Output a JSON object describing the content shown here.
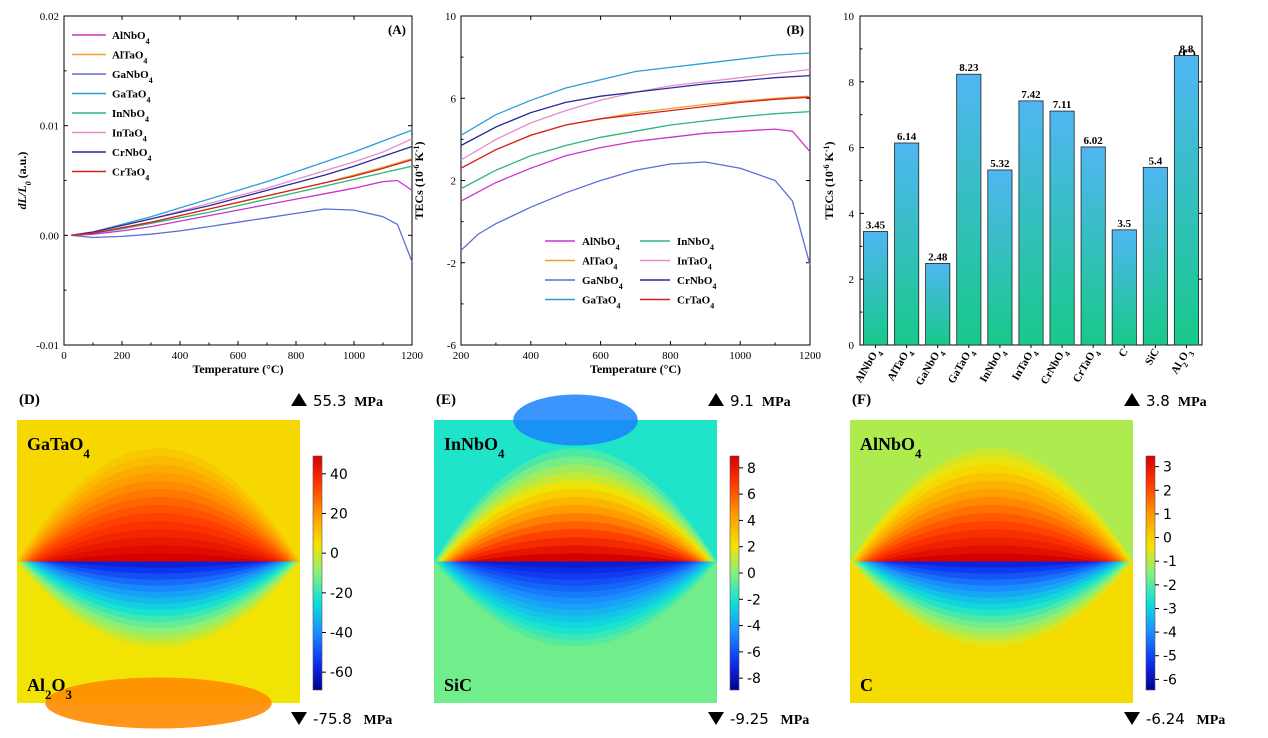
{
  "chart_data": [
    {
      "type": "line",
      "panel_label": "(A)",
      "xlabel": "Temperature (°C)",
      "ylabel": "dL/L0 (a.u.)",
      "ylabel_parts": {
        "main": "dL/L",
        "sub": "0",
        "unit": " (a.u.)"
      },
      "xlim": [
        0,
        1200
      ],
      "ylim": [
        -0.01,
        0.02
      ],
      "xticks": [
        0,
        200,
        400,
        600,
        800,
        1000,
        1200
      ],
      "yticks": [
        -0.01,
        0.0,
        0.01,
        0.02
      ],
      "ytick_labels": [
        "-0.01",
        "0.00",
        "0.01",
        "0.02"
      ],
      "legend_position": "top-left",
      "series": [
        {
          "name": "AlNbO4",
          "label_main": "AlNbO",
          "label_sub": "4",
          "color": "#cc33cc",
          "x": [
            25,
            100,
            200,
            300,
            400,
            500,
            600,
            700,
            800,
            900,
            1000,
            1100,
            1150,
            1200
          ],
          "y": [
            0.0,
            0.0001,
            0.0004,
            0.0008,
            0.0013,
            0.0018,
            0.0023,
            0.0028,
            0.0033,
            0.0038,
            0.0043,
            0.0049,
            0.005,
            0.0041
          ]
        },
        {
          "name": "AlTaO4",
          "label_main": "AlTaO",
          "label_sub": "4",
          "color": "#e8a32c",
          "x": [
            25,
            100,
            200,
            300,
            400,
            500,
            600,
            700,
            800,
            900,
            1000,
            1100,
            1200
          ],
          "y": [
            0.0,
            0.0002,
            0.0007,
            0.0012,
            0.0018,
            0.0024,
            0.003,
            0.0036,
            0.0042,
            0.0048,
            0.0055,
            0.0062,
            0.007
          ]
        },
        {
          "name": "GaNbO4",
          "label_main": "GaNbO",
          "label_sub": "4",
          "color": "#5b6fd6",
          "x": [
            25,
            100,
            200,
            300,
            400,
            500,
            600,
            700,
            800,
            900,
            1000,
            1100,
            1150,
            1200
          ],
          "y": [
            0.0,
            -0.0002,
            -0.0001,
            0.0001,
            0.0004,
            0.0008,
            0.0012,
            0.0016,
            0.002,
            0.0024,
            0.0023,
            0.0017,
            0.001,
            -0.0024
          ]
        },
        {
          "name": "GaTaO4",
          "label_main": "GaTaO",
          "label_sub": "4",
          "color": "#2b9fd6",
          "x": [
            25,
            100,
            200,
            300,
            400,
            500,
            600,
            700,
            800,
            900,
            1000,
            1100,
            1200
          ],
          "y": [
            0.0,
            0.0003,
            0.001,
            0.0017,
            0.0025,
            0.0033,
            0.0041,
            0.0049,
            0.0058,
            0.0067,
            0.0076,
            0.0086,
            0.0096
          ]
        },
        {
          "name": "InNbO4",
          "label_main": "InNbO",
          "label_sub": "4",
          "color": "#2cb57a",
          "x": [
            25,
            100,
            200,
            300,
            400,
            500,
            600,
            700,
            800,
            900,
            1000,
            1100,
            1200
          ],
          "y": [
            0.0,
            0.0002,
            0.0006,
            0.0011,
            0.0016,
            0.0021,
            0.0027,
            0.0033,
            0.0039,
            0.0045,
            0.0051,
            0.0057,
            0.0063
          ]
        },
        {
          "name": "InTaO4",
          "label_main": "InTaO",
          "label_sub": "4",
          "color": "#e48ec9",
          "x": [
            25,
            100,
            200,
            300,
            400,
            500,
            600,
            700,
            800,
            900,
            1000,
            1100,
            1200
          ],
          "y": [
            0.0,
            0.0003,
            0.0009,
            0.0015,
            0.0022,
            0.0029,
            0.0036,
            0.0043,
            0.0051,
            0.0059,
            0.0067,
            0.0076,
            0.0088
          ]
        },
        {
          "name": "CrNbO4",
          "label_main": "CrNbO",
          "label_sub": "4",
          "color": "#2a2a9a",
          "x": [
            25,
            100,
            200,
            300,
            400,
            500,
            600,
            700,
            800,
            900,
            1000,
            1100,
            1200
          ],
          "y": [
            0.0,
            0.0003,
            0.0009,
            0.0015,
            0.0021,
            0.0027,
            0.0034,
            0.0041,
            0.0048,
            0.0055,
            0.0063,
            0.0072,
            0.0081
          ]
        },
        {
          "name": "CrTaO4",
          "label_main": "CrTaO",
          "label_sub": "4",
          "color": "#d62020",
          "x": [
            25,
            100,
            200,
            300,
            400,
            500,
            600,
            700,
            800,
            900,
            1000,
            1100,
            1200
          ],
          "y": [
            0.0,
            0.0002,
            0.0007,
            0.0012,
            0.0018,
            0.0024,
            0.003,
            0.0036,
            0.0042,
            0.0048,
            0.0054,
            0.0061,
            0.0069
          ]
        }
      ]
    },
    {
      "type": "line",
      "panel_label": "(B)",
      "xlabel": "Temperature (°C)",
      "ylabel": "TECs (10-6 K-1)",
      "ylabel_parts": {
        "main": "TECs (10",
        "sup1": "-6",
        "mid": " K",
        "sup2": "-1",
        "end": ")"
      },
      "xlim": [
        200,
        1200
      ],
      "ylim": [
        -6,
        10
      ],
      "xticks": [
        200,
        400,
        600,
        800,
        1000,
        1200
      ],
      "yticks": [
        -6,
        -2,
        2,
        6,
        10
      ],
      "legend_position": "bottom-center",
      "series": [
        {
          "name": "AlNbO4",
          "label_main": "AlNbO",
          "label_sub": "4",
          "color": "#cc33cc",
          "x": [
            200,
            300,
            400,
            500,
            600,
            700,
            800,
            900,
            1000,
            1100,
            1150,
            1200
          ],
          "y": [
            1.0,
            1.9,
            2.6,
            3.2,
            3.6,
            3.9,
            4.1,
            4.3,
            4.4,
            4.5,
            4.4,
            3.4
          ]
        },
        {
          "name": "AlTaO4",
          "label_main": "AlTaO",
          "label_sub": "4",
          "color": "#e8a32c",
          "x": [
            200,
            300,
            400,
            500,
            600,
            700,
            800,
            900,
            1000,
            1100,
            1200
          ],
          "y": [
            2.6,
            3.5,
            4.2,
            4.7,
            5.0,
            5.3,
            5.5,
            5.7,
            5.85,
            6.0,
            6.1
          ]
        },
        {
          "name": "GaNbO4",
          "label_main": "GaNbO",
          "label_sub": "4",
          "color": "#5b6fd6",
          "x": [
            200,
            250,
            300,
            400,
            500,
            600,
            700,
            800,
            900,
            1000,
            1100,
            1150,
            1200
          ],
          "y": [
            -1.4,
            -0.6,
            -0.1,
            0.7,
            1.4,
            2.0,
            2.5,
            2.8,
            2.9,
            2.6,
            2.0,
            1.0,
            -2.1
          ]
        },
        {
          "name": "GaTaO4",
          "label_main": "GaTaO",
          "label_sub": "4",
          "color": "#2b9fd6",
          "x": [
            200,
            300,
            400,
            500,
            600,
            700,
            800,
            900,
            1000,
            1100,
            1200
          ],
          "y": [
            4.2,
            5.2,
            5.9,
            6.5,
            6.9,
            7.3,
            7.5,
            7.7,
            7.9,
            8.1,
            8.2
          ]
        },
        {
          "name": "InNbO4",
          "label_main": "InNbO",
          "label_sub": "4",
          "color": "#2cb57a",
          "x": [
            200,
            300,
            400,
            500,
            600,
            700,
            800,
            900,
            1000,
            1100,
            1200
          ],
          "y": [
            1.6,
            2.5,
            3.2,
            3.7,
            4.1,
            4.4,
            4.7,
            4.9,
            5.1,
            5.25,
            5.35
          ]
        },
        {
          "name": "InTaO4",
          "label_main": "InTaO",
          "label_sub": "4",
          "color": "#e48ec9",
          "x": [
            200,
            300,
            400,
            500,
            600,
            700,
            800,
            900,
            1000,
            1100,
            1200
          ],
          "y": [
            3.0,
            4.0,
            4.8,
            5.4,
            5.9,
            6.3,
            6.6,
            6.8,
            7.0,
            7.2,
            7.4
          ]
        },
        {
          "name": "CrNbO4",
          "label_main": "CrNbO",
          "label_sub": "4",
          "color": "#2a2a9a",
          "x": [
            200,
            300,
            400,
            500,
            600,
            700,
            800,
            900,
            1000,
            1100,
            1200
          ],
          "y": [
            3.7,
            4.6,
            5.3,
            5.8,
            6.1,
            6.3,
            6.5,
            6.7,
            6.85,
            7.0,
            7.1
          ]
        },
        {
          "name": "CrTaO4",
          "label_main": "CrTaO",
          "label_sub": "4",
          "color": "#d62020",
          "x": [
            200,
            300,
            400,
            500,
            600,
            700,
            800,
            900,
            1000,
            1100,
            1200
          ],
          "y": [
            2.6,
            3.5,
            4.2,
            4.7,
            5.0,
            5.2,
            5.4,
            5.6,
            5.8,
            5.95,
            6.05
          ]
        }
      ]
    },
    {
      "type": "bar",
      "panel_label": "(C)",
      "ylabel": "TECs (10-6 K-1)",
      "ylabel_parts": {
        "main": "TECs (10",
        "sup1": "-6",
        "mid": " K",
        "sup2": "-1",
        "end": ")"
      },
      "ylim": [
        0,
        10
      ],
      "yticks": [
        0,
        2,
        4,
        6,
        8,
        10
      ],
      "categories": [
        "AlNbO4",
        "AlTaO4",
        "GaNbO4",
        "GaTaO4",
        "InNbO4",
        "InTaO4",
        "CrNbO4",
        "CrTaO4",
        "C",
        "SiC",
        "Al2O3"
      ],
      "category_parts": [
        {
          "main": "AlNbO",
          "sub": "4",
          "tail": ""
        },
        {
          "main": "AlTaO",
          "sub": "4",
          "tail": ""
        },
        {
          "main": "GaNbO",
          "sub": "4",
          "tail": ""
        },
        {
          "main": "GaTaO",
          "sub": "4",
          "tail": ""
        },
        {
          "main": "InNbO",
          "sub": "4",
          "tail": ""
        },
        {
          "main": "InTaO",
          "sub": "4",
          "tail": ""
        },
        {
          "main": "CrNbO",
          "sub": "4",
          "tail": ""
        },
        {
          "main": "CrTaO",
          "sub": "4",
          "tail": ""
        },
        {
          "main": "C",
          "sub": "",
          "tail": ""
        },
        {
          "main": "SiC",
          "sub": "",
          "tail": ""
        },
        {
          "main": "Al",
          "sub": "2",
          "tail": "O",
          "sub2": "3"
        }
      ],
      "values": [
        3.45,
        6.14,
        2.48,
        8.23,
        5.32,
        7.42,
        7.11,
        6.02,
        3.5,
        5.4,
        8.8
      ],
      "value_labels": [
        "3.45",
        "6.14",
        "2.48",
        "8.23",
        "5.32",
        "7.42",
        "7.11",
        "6.02",
        "3.5",
        "5.4",
        "8.8"
      ],
      "bar_color_top": "#4fb6f2",
      "bar_color_bottom": "#18c98a"
    },
    {
      "type": "heatmap",
      "panel_label": "(D)",
      "top_material": {
        "main": "GaTaO",
        "sub": "4"
      },
      "bottom_material": {
        "main": "Al",
        "sub": "2",
        "tail": "O",
        "sub2": "3"
      },
      "max_value": 55.3,
      "min_value": -75.8,
      "max_label": "55.3",
      "min_label": "-75.8",
      "unit": "MPa",
      "colorbar_ticks": [
        40,
        20,
        0,
        -20,
        -40,
        -60
      ],
      "colorbar_tick_labels": [
        "40",
        "20",
        "0",
        "-20",
        "-40",
        "-60"
      ],
      "top_field_value": 8,
      "bottom_field_value": 5
    },
    {
      "type": "heatmap",
      "panel_label": "(E)",
      "top_material": {
        "main": "InNbO",
        "sub": "4"
      },
      "bottom_material": {
        "main": "SiC",
        "sub": ""
      },
      "max_value": 9.1,
      "min_value": -9.25,
      "max_label": "9.1",
      "min_label": "-9.25",
      "unit": "MPa",
      "colorbar_ticks": [
        8,
        6,
        4,
        2,
        0,
        -2,
        -4,
        -6,
        -8
      ],
      "colorbar_tick_labels": [
        "8",
        "6",
        "4",
        "2",
        "0",
        "-2",
        "-4",
        "-6",
        "-8"
      ],
      "top_field_value": -2,
      "bottom_field_value": -0.5
    },
    {
      "type": "heatmap",
      "panel_label": "(F)",
      "top_material": {
        "main": "AlNbO",
        "sub": "4"
      },
      "bottom_material": {
        "main": "C",
        "sub": ""
      },
      "max_value": 3.8,
      "min_value": -6.24,
      "max_label": "3.8",
      "min_label": "-6.24",
      "unit": "MPa",
      "colorbar_ticks": [
        3,
        2,
        1,
        0,
        -1,
        -2,
        -3,
        -4,
        -5,
        -6
      ],
      "colorbar_tick_labels": [
        "3",
        "2",
        "1",
        "0",
        "-1",
        "-2",
        "-3",
        "-4",
        "-5",
        "-6"
      ],
      "top_field_value": -0.8,
      "bottom_field_value": 0.1
    }
  ]
}
